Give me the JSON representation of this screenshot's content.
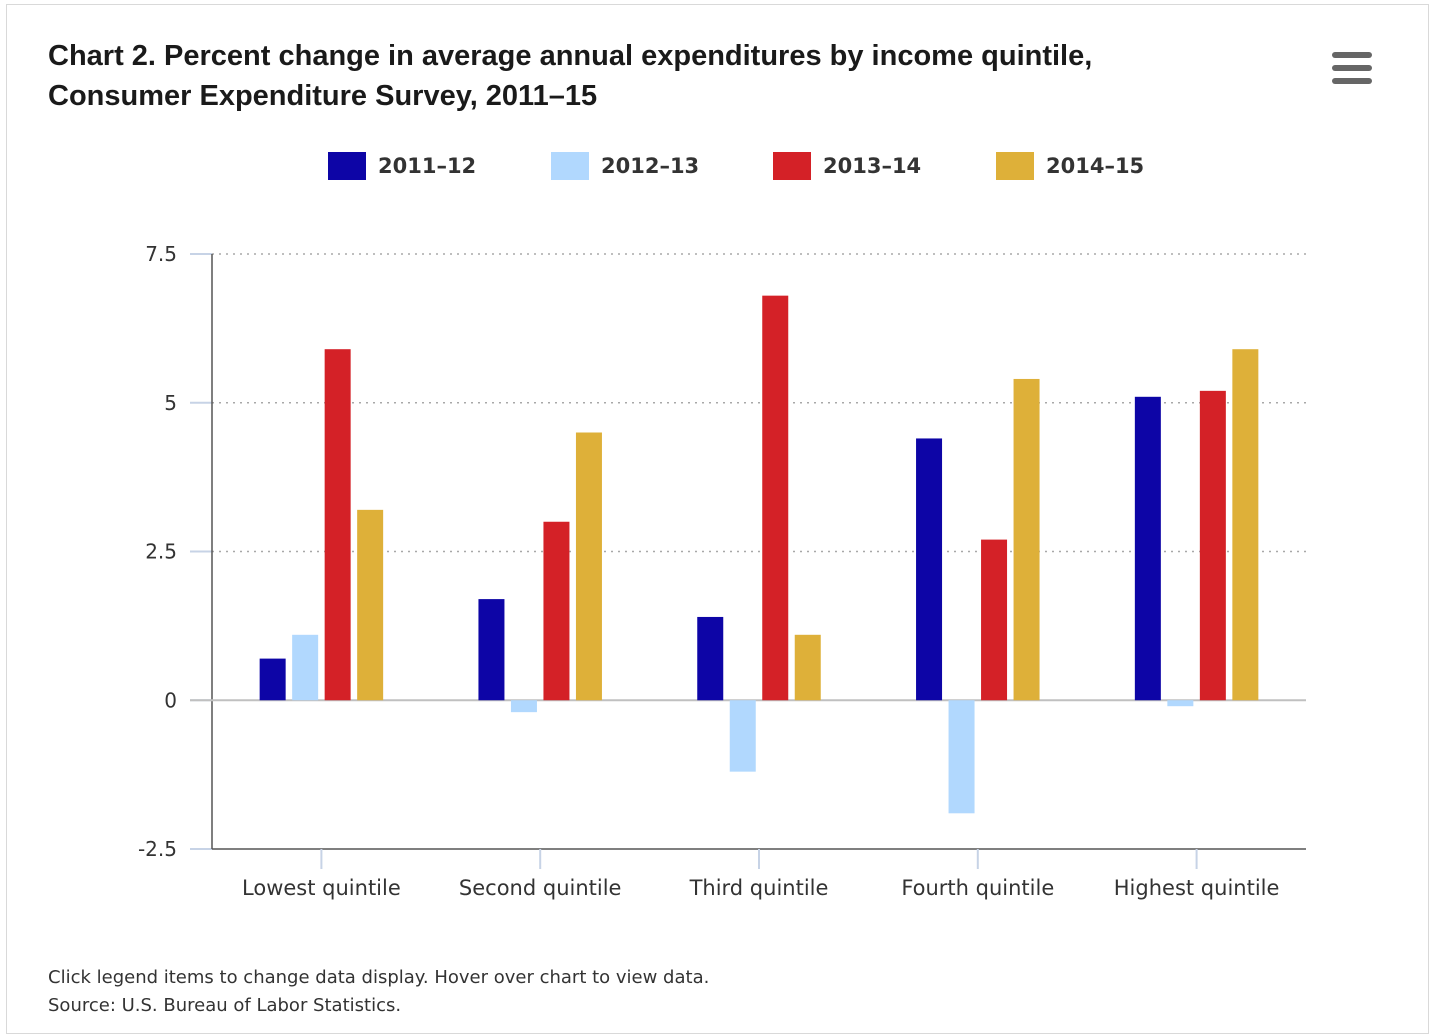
{
  "title_line1": "Chart 2. Percent change in average annual expenditures by income quintile,",
  "title_line2": "Consumer Expenditure Survey, 2011–15",
  "menu_icon": "hamburger-menu-icon",
  "footer": {
    "note": "Click legend items to change data display. Hover over chart to view data.",
    "source": "Source: U.S. Bureau of Labor Statistics."
  },
  "chart_data": {
    "type": "bar",
    "title": "Chart 2. Percent change in average annual expenditures by income quintile, Consumer Expenditure Survey, 2011–15",
    "categories": [
      "Lowest quintile",
      "Second quintile",
      "Third quintile",
      "Fourth quintile",
      "Highest quintile"
    ],
    "series": [
      {
        "name": "2011–12",
        "color": "#0d05a6",
        "values": [
          0.7,
          1.7,
          1.4,
          4.4,
          5.1
        ]
      },
      {
        "name": "2012–13",
        "color": "#b1d8fe",
        "values": [
          1.1,
          -0.2,
          -1.2,
          -1.9,
          -0.1
        ]
      },
      {
        "name": "2013–14",
        "color": "#d42127",
        "values": [
          5.9,
          3.0,
          6.8,
          2.7,
          5.2
        ]
      },
      {
        "name": "2014–15",
        "color": "#deb039",
        "values": [
          3.2,
          4.5,
          1.1,
          5.4,
          5.9
        ]
      }
    ],
    "ylim": [
      -2.5,
      7.5
    ],
    "yticks": [
      -2.5,
      0,
      2.5,
      5,
      7.5
    ],
    "ytick_labels": [
      "-2.5",
      "0",
      "2.5",
      "5",
      "7.5"
    ],
    "xlabel": "",
    "ylabel": "",
    "grid": true,
    "legend_position": "top-center"
  }
}
